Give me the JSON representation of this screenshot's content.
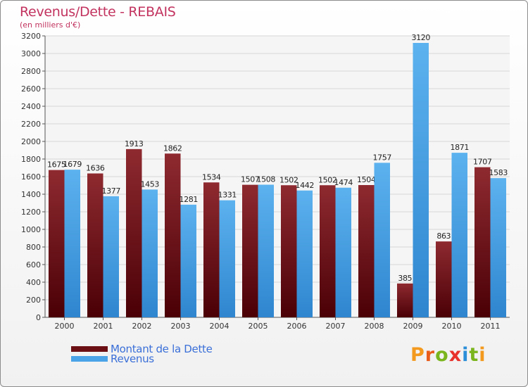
{
  "title": "Revenus/Dette - REBAIS",
  "subtitle": "(en milliers d'€)",
  "legend": [
    {
      "label": "Montant de la Dette",
      "color": "#6b0f14"
    },
    {
      "label": "Revenus",
      "color": "#4aa3e6"
    }
  ],
  "logo": "Proxiti",
  "colors": {
    "debt": "#6b0f14",
    "revenue": "#4aa3e6",
    "title": "#c2335f",
    "legend_text": "#3a6fd8"
  },
  "chart_data": {
    "type": "bar",
    "title": "Revenus/Dette - REBAIS",
    "subtitle": "(en milliers d'€)",
    "categories": [
      "2000",
      "2001",
      "2002",
      "2003",
      "2004",
      "2005",
      "2006",
      "2007",
      "2008",
      "2009",
      "2010",
      "2011"
    ],
    "series": [
      {
        "name": "Montant de la Dette",
        "values": [
          1675,
          1636,
          1913,
          1862,
          1534,
          1507,
          1502,
          1502,
          1504,
          385,
          863,
          1707
        ]
      },
      {
        "name": "Revenus",
        "values": [
          1679,
          1377,
          1453,
          1281,
          1331,
          1508,
          1442,
          1474,
          1757,
          3120,
          1871,
          1583
        ]
      }
    ],
    "ylim": [
      0,
      3200
    ],
    "yticks": [
      0,
      200,
      400,
      600,
      800,
      1000,
      1200,
      1400,
      1600,
      1800,
      2000,
      2200,
      2400,
      2600,
      2800,
      3000,
      3200
    ],
    "grid": true,
    "legend_position": "bottom-left"
  }
}
